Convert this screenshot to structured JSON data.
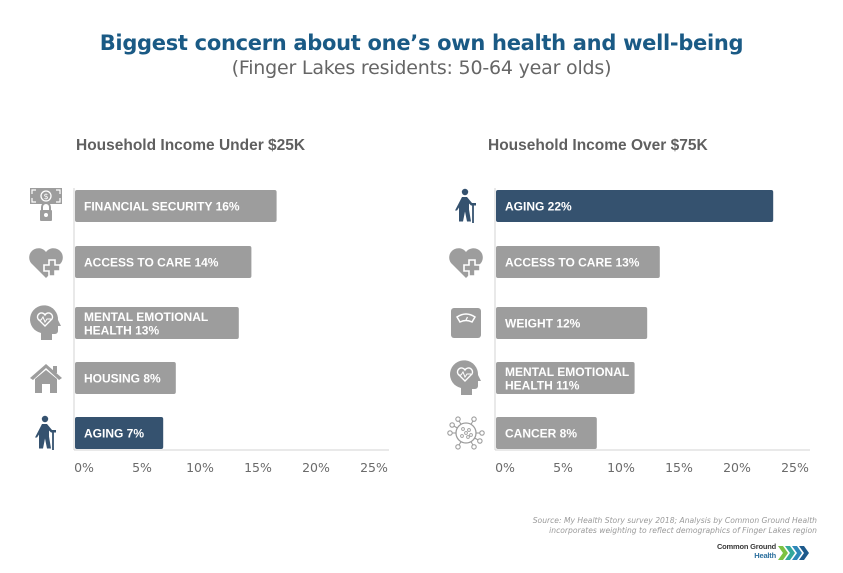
{
  "title": "Biggest concern about one’s own health and well-being",
  "subtitle": "(Finger Lakes residents: 50-64 year olds)",
  "colors": {
    "title": "#1a5a85",
    "bar_default": "#9d9d9d",
    "bar_highlight": "#35526f",
    "icon_default": "#9d9d9d",
    "icon_highlight": "#35526f",
    "axis": "#d3d3d3"
  },
  "chart_data": [
    {
      "type": "bar",
      "orientation": "horizontal",
      "title": "Household Income Under $25K",
      "categories": [
        "Financial Security",
        "Access to Care",
        "Mental Emotional Health",
        "Housing",
        "Aging"
      ],
      "bar_labels": [
        [
          "FINANCIAL SECURITY 16%"
        ],
        [
          "ACCESS TO CARE 14%"
        ],
        [
          "MENTAL EMOTIONAL",
          "HEALTH 13%"
        ],
        [
          "HOUSING 8%"
        ],
        [
          "AGING 7%"
        ]
      ],
      "icons": [
        "money-lock-icon",
        "heart-plus-icon",
        "head-heart-icon",
        "house-icon",
        "elderly-person-icon"
      ],
      "values": [
        16,
        14,
        13,
        8,
        7
      ],
      "highlight": [
        false,
        false,
        false,
        false,
        true
      ],
      "xlabel": "",
      "ylabel": "",
      "xlim": [
        0,
        25
      ],
      "x_ticks": [
        "0%",
        "5%",
        "10%",
        "15%",
        "20%",
        "25%"
      ],
      "grid": false,
      "legend": "none"
    },
    {
      "type": "bar",
      "orientation": "horizontal",
      "title": "Household Income Over $75K",
      "categories": [
        "Aging",
        "Access to Care",
        "Weight",
        "Mental Emotional Health",
        "Cancer"
      ],
      "bar_labels": [
        [
          "AGING 22%"
        ],
        [
          "ACCESS TO CARE 13%"
        ],
        [
          "WEIGHT 12%"
        ],
        [
          "MENTAL EMOTIONAL",
          "HEALTH 11%"
        ],
        [
          "CANCER 8%"
        ]
      ],
      "icons": [
        "elderly-person-icon",
        "heart-plus-icon",
        "scale-icon",
        "head-heart-icon",
        "virus-cell-icon"
      ],
      "values": [
        22,
        13,
        12,
        11,
        8
      ],
      "highlight": [
        true,
        false,
        false,
        false,
        false
      ],
      "xlabel": "",
      "ylabel": "",
      "xlim": [
        0,
        25
      ],
      "x_ticks": [
        "0%",
        "5%",
        "10%",
        "15%",
        "20%",
        "25%"
      ],
      "grid": false,
      "legend": "none"
    }
  ],
  "source": {
    "line1": "Source: My Health Story survey 2018; Analysis by Common Ground Health",
    "line2": "incorporates weighting to reflect demographics of Finger Lakes region"
  },
  "logo": {
    "line1": "Common Ground",
    "line2": "Health",
    "icon": "chevrons-right-icon"
  }
}
